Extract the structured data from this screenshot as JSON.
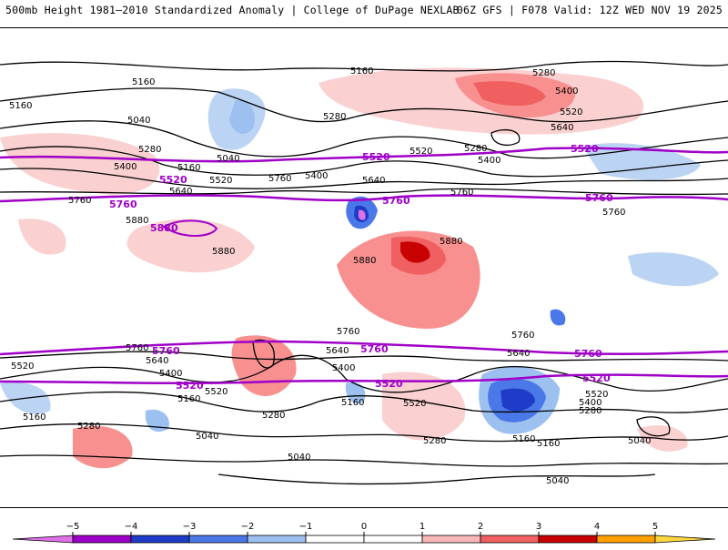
{
  "header": {
    "left": "500mb Height 1981–2010 Standardized Anomaly | College of DuPage NEXLAB",
    "right": "06Z GFS | F078 Valid: 12Z WED NOV 19 2025"
  },
  "contour_labels": {
    "c5160": "5160",
    "c5280": "5280",
    "c5400": "5400",
    "c5520": "5520",
    "c5640": "5640",
    "c5760": "5760",
    "c5880": "5880",
    "c5040": "5040"
  },
  "colorbar": {
    "ticks": [
      "−5",
      "−4",
      "−3",
      "−2",
      "−1",
      "0",
      "1",
      "2",
      "3",
      "4",
      "5"
    ],
    "colors": [
      "#e070e8",
      "#9a00c8",
      "#1e3cc8",
      "#4a78e8",
      "#9cc0f0",
      "#ffffff",
      "#ffffff",
      "#f8b8b8",
      "#f06060",
      "#c80000",
      "#ffa000",
      "#ffd840"
    ]
  }
}
